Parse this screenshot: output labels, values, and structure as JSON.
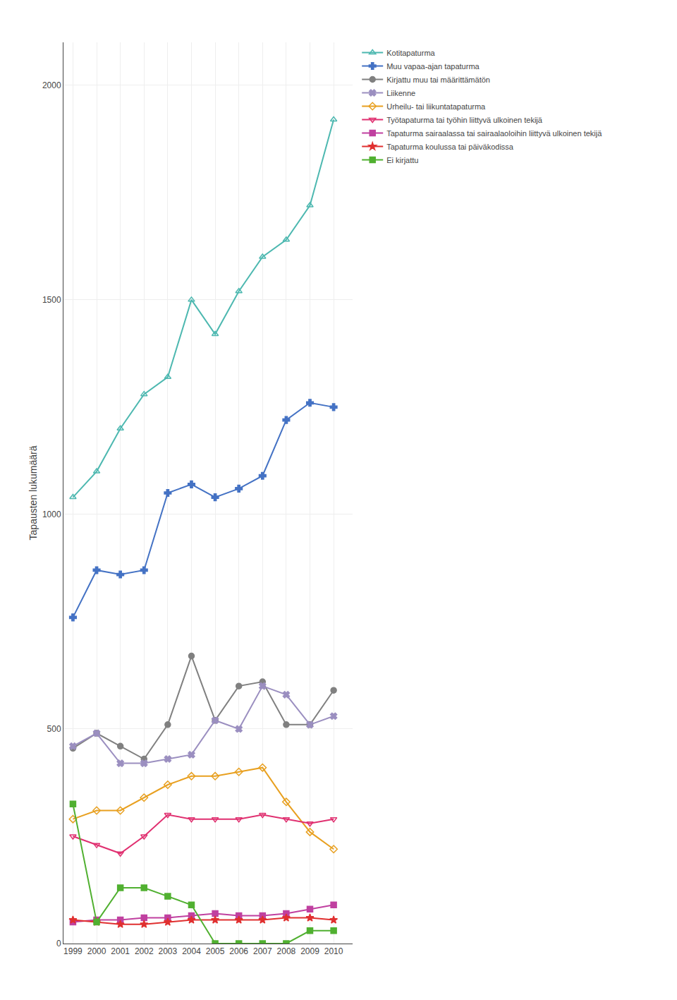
{
  "chart_data": {
    "type": "line",
    "x": [
      1999,
      2000,
      2001,
      2002,
      2003,
      2004,
      2005,
      2006,
      2007,
      2008,
      2009,
      2010
    ],
    "series": [
      {
        "name": "Kotitapaturma",
        "color": "#4db8b0",
        "marker": "triangle-up-open",
        "values": [
          1040,
          1100,
          1200,
          1280,
          1320,
          1500,
          1420,
          1520,
          1600,
          1640,
          1720,
          1920
        ]
      },
      {
        "name": "Muu vapaa-ajan tapaturma",
        "color": "#4472c4",
        "marker": "cross",
        "values": [
          760,
          870,
          860,
          870,
          1050,
          1070,
          1040,
          1060,
          1090,
          1220,
          1260,
          1250
        ]
      },
      {
        "name": "Kirjattu muu tai määrittämätön",
        "color": "#808080",
        "marker": "circle",
        "values": [
          455,
          490,
          460,
          430,
          510,
          670,
          520,
          600,
          610,
          510,
          510,
          590
        ]
      },
      {
        "name": "Liikenne",
        "color": "#9b8fc0",
        "marker": "x",
        "values": [
          460,
          490,
          420,
          420,
          430,
          440,
          520,
          500,
          600,
          580,
          510,
          530
        ]
      },
      {
        "name": "Urheilu- tai liikuntatapaturma",
        "color": "#e8a020",
        "marker": "diamond-open",
        "values": [
          290,
          310,
          310,
          340,
          370,
          390,
          390,
          400,
          410,
          330,
          260,
          220
        ]
      },
      {
        "name": "Työtapaturma tai työhin liittyvä ulkoinen tekijä",
        "color": "#e03070",
        "marker": "triangle-down-open",
        "values": [
          250,
          230,
          210,
          250,
          300,
          290,
          290,
          290,
          300,
          290,
          280,
          290
        ]
      },
      {
        "name": "Tapaturma sairaalassa tai sairaalaoloihin liittyvä ulkoinen tekijä",
        "color": "#c040a0",
        "marker": "square",
        "values": [
          50,
          55,
          55,
          60,
          60,
          65,
          70,
          65,
          65,
          70,
          80,
          90
        ]
      },
      {
        "name": "Tapaturma koulussa tai päiväkodissa",
        "color": "#e03030",
        "marker": "star",
        "values": [
          55,
          50,
          45,
          45,
          50,
          55,
          55,
          55,
          55,
          60,
          60,
          55
        ]
      },
      {
        "name": "Ei kirjattu",
        "color": "#50b030",
        "marker": "square",
        "values": [
          325,
          50,
          130,
          130,
          110,
          90,
          0,
          0,
          0,
          0,
          30,
          30
        ]
      }
    ],
    "ylabel": "Tapausten lukumäärä",
    "xlim": [
      1998.6,
      2010.8
    ],
    "xticks": [
      1999,
      2000,
      2001,
      2002,
      2003,
      2004,
      2005,
      2006,
      2007,
      2008,
      2009,
      2010
    ],
    "ylim": [
      0,
      2100
    ],
    "yticks": [
      0,
      500,
      1000,
      1500,
      2000
    ],
    "grid": true,
    "legend": "right"
  }
}
